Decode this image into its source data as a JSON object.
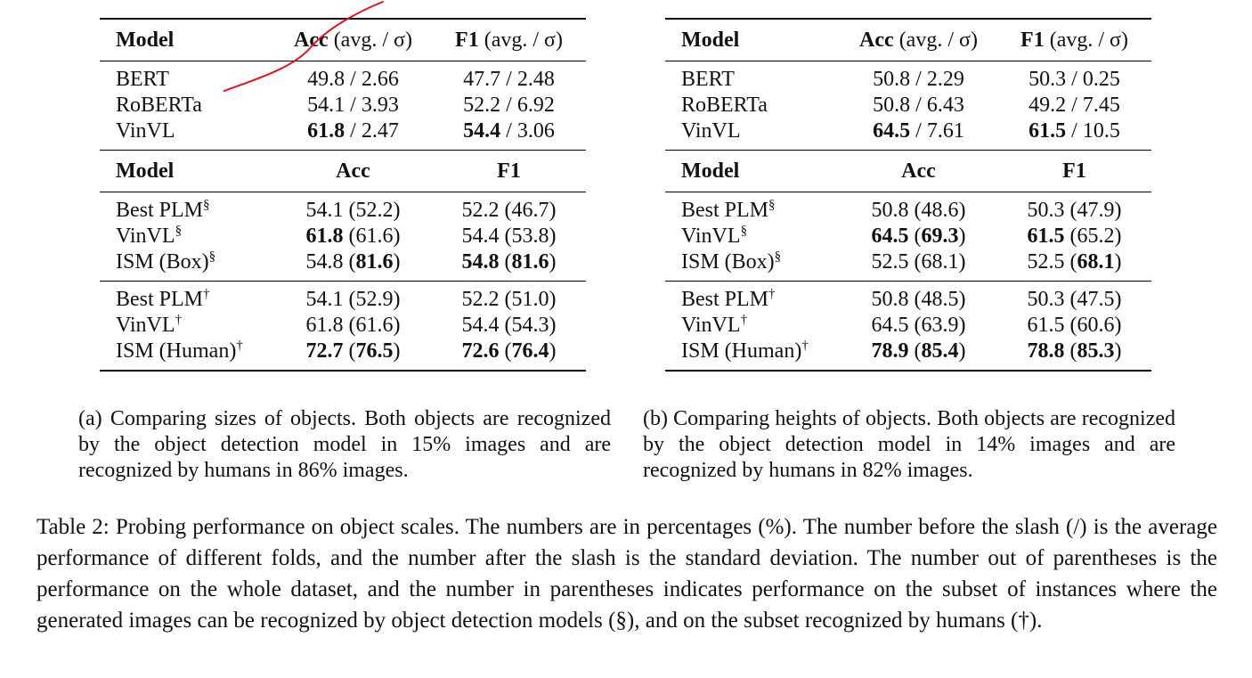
{
  "panel_a": {
    "header1": {
      "model": "Model",
      "acc": "Acc",
      "acc_suffix": "(avg. / σ)",
      "f1": "F1",
      "f1_suffix": "(avg. / σ)"
    },
    "rows1": [
      {
        "model": "BERT",
        "acc": "49.8 / 2.66",
        "f1": "47.7 / 2.48"
      },
      {
        "model": "RoBERTa",
        "acc": "54.1 / 3.93",
        "f1": "52.2 / 6.92"
      },
      {
        "model": "VinVL",
        "acc_bold": "61.8",
        "acc_rest": " / 2.47",
        "f1_bold": "54.4",
        "f1_rest": " / 3.06"
      }
    ],
    "header2": {
      "model": "Model",
      "acc": "Acc",
      "f1": "F1"
    },
    "rows2": [
      {
        "model": "Best PLM",
        "sup": "§",
        "acc": "54.1 (52.2)",
        "f1": "52.2 (46.7)"
      },
      {
        "model": "VinVL",
        "sup": "§",
        "acc_bold": "61.8",
        "acc_rest": " (61.6)",
        "f1": "54.4 (53.8)"
      },
      {
        "model": "ISM (Box)",
        "sup": "§",
        "acc_pre": "54.8 (",
        "acc_bold": "81.6",
        "acc_post": ")",
        "f1_bold1": "54.8",
        "f1_mid": " (",
        "f1_bold2": "81.6",
        "f1_post": ")"
      }
    ],
    "rows3": [
      {
        "model": "Best PLM",
        "sup": "†",
        "acc": "54.1 (52.9)",
        "f1": "52.2 (51.0)"
      },
      {
        "model": "VinVL",
        "sup": "†",
        "acc": "61.8 (61.6)",
        "f1": "54.4 (54.3)"
      },
      {
        "model": "ISM (Human)",
        "sup": "†",
        "acc_bold1": "72.7",
        "acc_mid": " (",
        "acc_bold2": "76.5",
        "acc_post": ")",
        "f1_bold1": "72.6",
        "f1_mid": " (",
        "f1_bold2": "76.4",
        "f1_post": ")"
      }
    ],
    "caption": "(a) Comparing sizes of objects. Both objects are recognized by the object detection model in 15% images and are recognized by humans in 86% images."
  },
  "panel_b": {
    "header1": {
      "model": "Model",
      "acc": "Acc",
      "acc_suffix": "(avg. / σ)",
      "f1": "F1",
      "f1_suffix": "(avg. / σ)"
    },
    "rows1": [
      {
        "model": "BERT",
        "acc": "50.8 / 2.29",
        "f1": "50.3 / 0.25"
      },
      {
        "model": "RoBERTa",
        "acc": "50.8 / 6.43",
        "f1": "49.2 / 7.45"
      },
      {
        "model": "VinVL",
        "acc_bold": "64.5",
        "acc_rest": " / 7.61",
        "f1_bold": "61.5",
        "f1_rest": " / 10.5"
      }
    ],
    "header2": {
      "model": "Model",
      "acc": "Acc",
      "f1": "F1"
    },
    "rows2": [
      {
        "model": "Best PLM",
        "sup": "§",
        "acc": "50.8 (48.6)",
        "f1": "50.3 (47.9)"
      },
      {
        "model": "VinVL",
        "sup": "§",
        "acc_bold1": "64.5",
        "acc_mid": " (",
        "acc_bold2": "69.3",
        "acc_post": ")",
        "f1_bold": "61.5",
        "f1_rest": " (65.2)"
      },
      {
        "model": "ISM (Box)",
        "sup": "§",
        "acc": "52.5 (68.1)",
        "f1_pre": "52.5 (",
        "f1_bold": "68.1",
        "f1_post": ")"
      }
    ],
    "rows3": [
      {
        "model": "Best PLM",
        "sup": "†",
        "acc": "50.8 (48.5)",
        "f1": "50.3 (47.5)"
      },
      {
        "model": "VinVL",
        "sup": "†",
        "acc": "64.5 (63.9)",
        "f1": "61.5 (60.6)"
      },
      {
        "model": "ISM (Human)",
        "sup": "†",
        "acc_bold1": "78.9",
        "acc_mid": " (",
        "acc_bold2": "85.4",
        "acc_post": ")",
        "f1_bold1": "78.8",
        "f1_mid": " (",
        "f1_bold2": "85.3",
        "f1_post": ")"
      }
    ],
    "caption": "(b) Comparing heights of objects. Both objects are recognized by the object detection model in 14% images and are recognized by humans in 82% images."
  },
  "main_caption": "Table 2: Probing performance on object scales. The numbers are in percentages (%). The number before the slash (/) is the average performance of different folds, and the number after the slash is the standard deviation. The number out of parentheses is the performance on the whole dataset, and the number in parentheses indicates performance on the subset of instances where the generated images can be recognized by object detection models (§), and on the subset recognized by humans (†).",
  "annotation_color": "#e0141e"
}
